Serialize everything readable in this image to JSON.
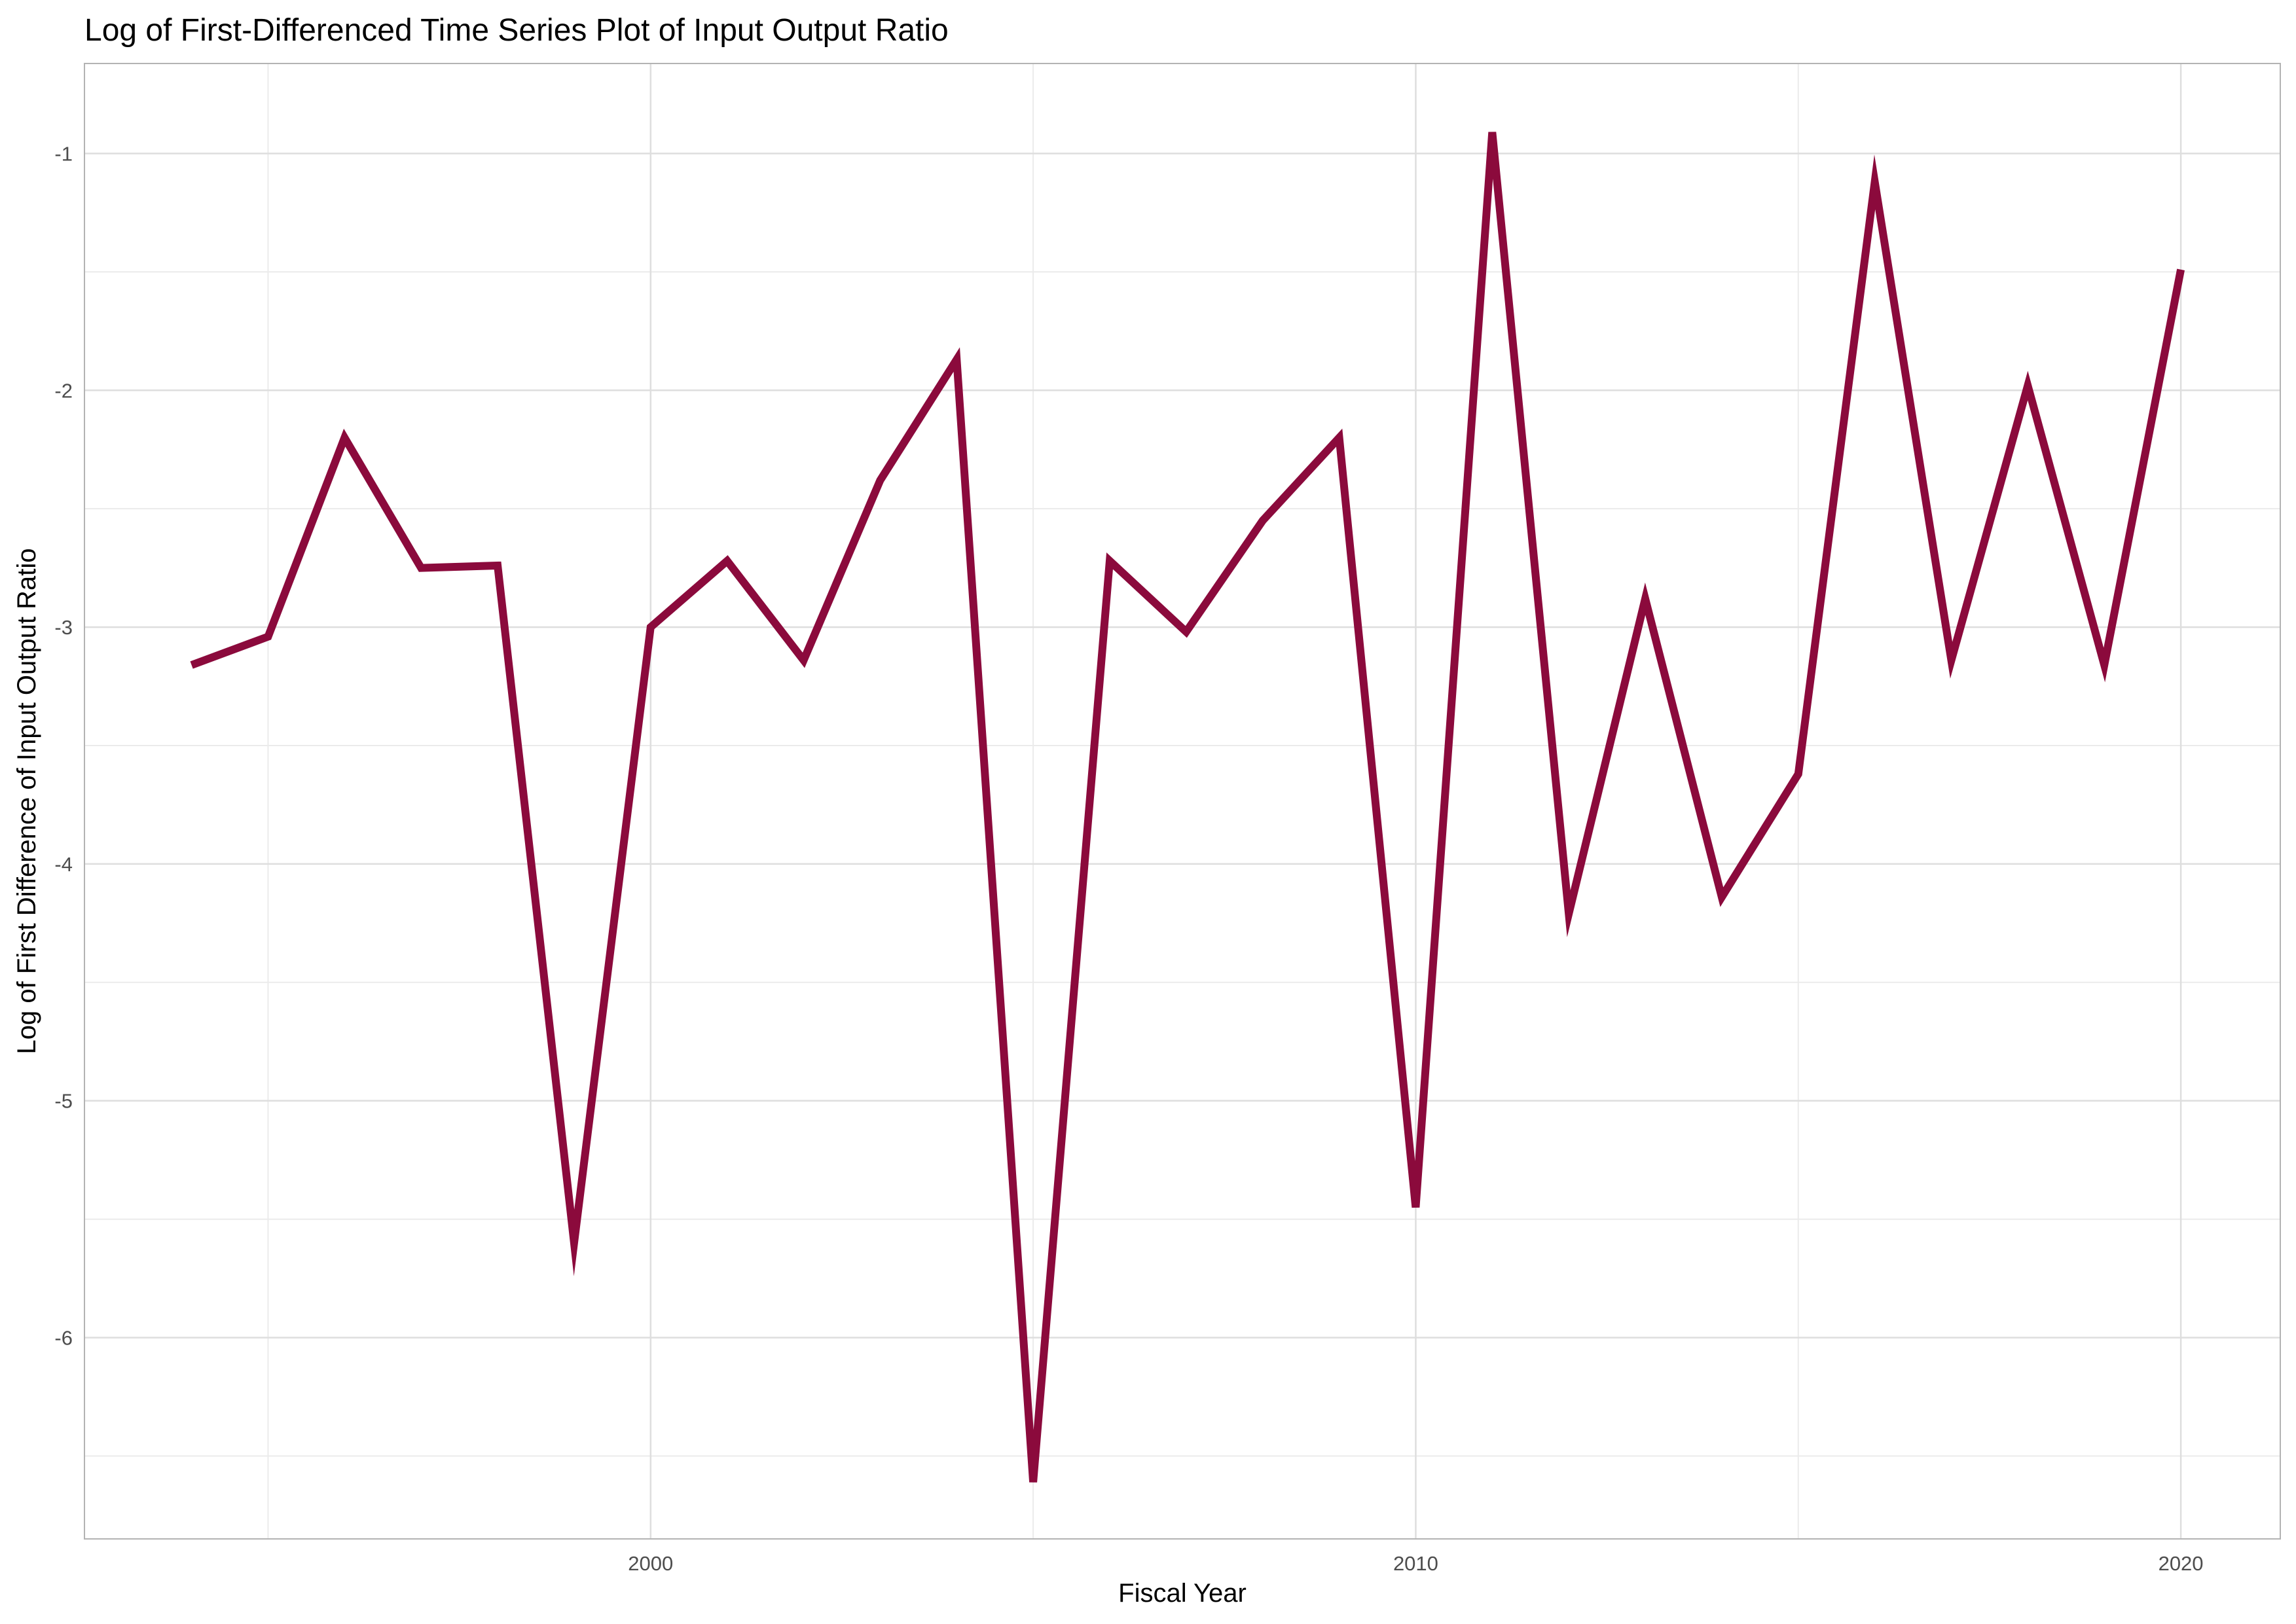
{
  "chart_data": {
    "type": "line",
    "title": "Log of First-Differenced Time Series Plot of Input Output Ratio",
    "xlabel": "Fiscal Year",
    "ylabel": "Log of First Difference of Input Output Ratio",
    "xlim": [
      1992.6,
      2021.3
    ],
    "ylim": [
      -6.85,
      -0.62
    ],
    "x_ticks": [
      2000,
      2010,
      2020
    ],
    "x_tick_labels": [
      "2000",
      "2010",
      "2020"
    ],
    "y_ticks": [
      -1,
      -2,
      -3,
      -4,
      -5,
      -6
    ],
    "y_tick_labels": [
      "-1",
      "-2",
      "-3",
      "-4",
      "-5",
      "-6"
    ],
    "grid": true,
    "line_color": "#8b0a3c",
    "series": [
      {
        "x": [
          1994,
          1995,
          1996,
          1997,
          1998,
          1999,
          2000,
          2001,
          2002,
          2003,
          2004,
          2005,
          2006,
          2007,
          2008,
          2009,
          2010,
          2011,
          2012,
          2013,
          2014,
          2015,
          2016,
          2017,
          2018,
          2019,
          2020
        ],
        "values": [
          -3.16,
          -3.04,
          -2.2,
          -2.75,
          -2.74,
          -5.6,
          -3.0,
          -2.72,
          -3.14,
          -2.38,
          -1.87,
          -6.61,
          -2.72,
          -3.02,
          -2.55,
          -2.2,
          -5.45,
          -0.91,
          -4.21,
          -2.88,
          -4.14,
          -3.62,
          -1.12,
          -3.14,
          -1.98,
          -3.16,
          -1.49
        ]
      }
    ]
  }
}
